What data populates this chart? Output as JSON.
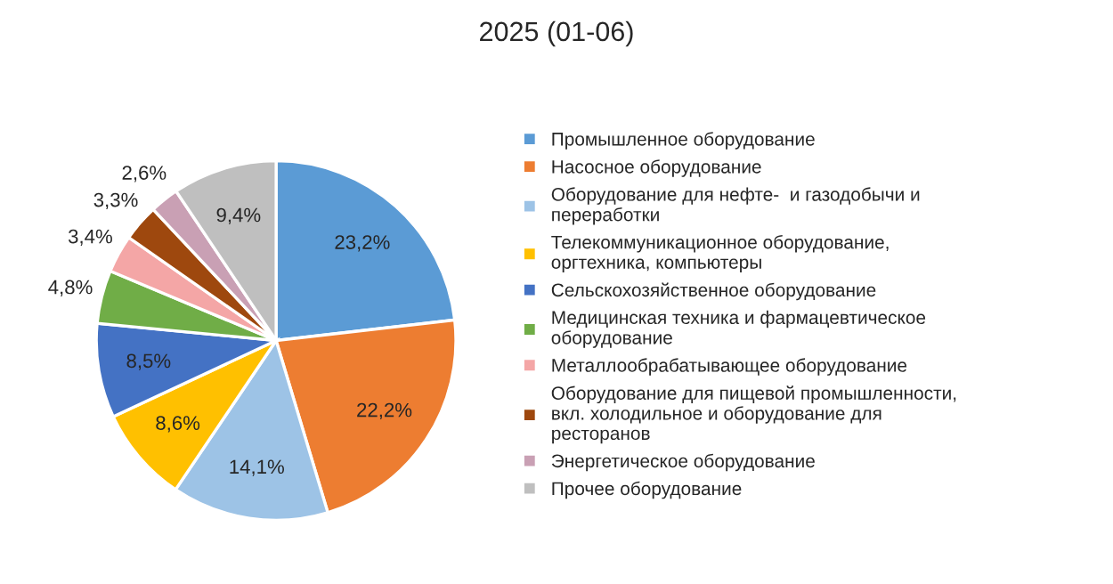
{
  "chart_data": {
    "type": "pie",
    "title": "2025 (01-06)",
    "categories": [
      "Промышленное оборудование",
      "Насосное оборудование",
      "Оборудование для нефте-  и газодобычи и переработки",
      "Телекоммуникационное оборудование, оргтехника, компьютеры",
      "Сельскохозяйственное оборудование",
      "Медицинская техника и фармацевтическое оборудование",
      "Металлообрабатывающее оборудование",
      "Оборудование для пищевой промышленности, вкл. холодильное и оборудование для ресторанов",
      "Энергетическое оборудование",
      "Прочее оборудование"
    ],
    "values": [
      23.2,
      22.2,
      14.1,
      8.6,
      8.5,
      4.8,
      3.4,
      3.3,
      2.6,
      9.4
    ],
    "value_labels": [
      "23,2%",
      "22,2%",
      "14,1%",
      "8,6%",
      "8,5%",
      "4,8%",
      "3,4%",
      "3,3%",
      "2,6%",
      "9,4%"
    ],
    "colors": [
      "#5b9bd5",
      "#ed7d31",
      "#9dc3e6",
      "#ffc000",
      "#4472c4",
      "#70ad47",
      "#f4a6a6",
      "#9e480e",
      "#c9a0b4",
      "#bfbfbf"
    ],
    "legend": "right"
  }
}
